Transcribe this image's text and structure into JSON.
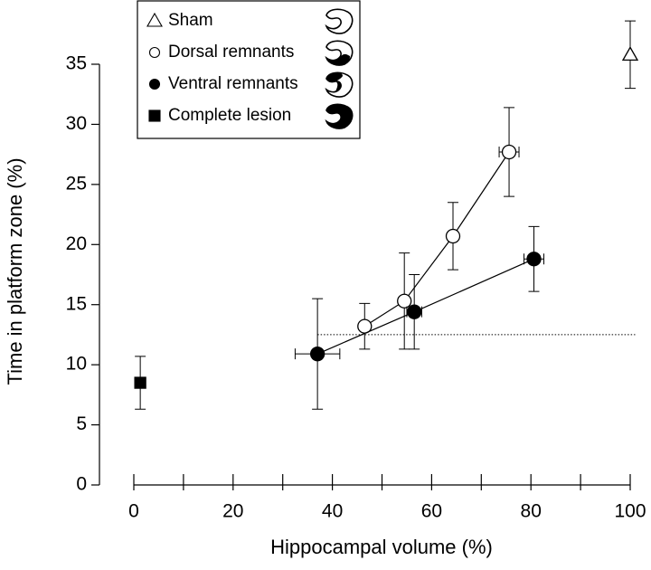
{
  "chart_data": {
    "type": "scatter",
    "xlabel": "Hippocampal volume (%)",
    "ylabel": "Time in platform zone (%)",
    "xlim": [
      0,
      100
    ],
    "ylim": [
      0,
      35
    ],
    "xticks": [
      0,
      20,
      40,
      60,
      80,
      100
    ],
    "xminor_ticks": [
      10,
      30,
      50,
      70,
      90
    ],
    "yticks": [
      0,
      5,
      10,
      15,
      20,
      25,
      30,
      35
    ],
    "reference_line": {
      "y": 12.5,
      "x": [
        37,
        101
      ]
    },
    "series": [
      {
        "name": "Sham",
        "marker": "triangle",
        "color": "#ffffff",
        "connect": false,
        "x": [
          100
        ],
        "y": [
          35.8
        ],
        "xerr": [
          0
        ],
        "yerr": [
          2.8
        ]
      },
      {
        "name": "Dorsal remnants",
        "marker": "circle",
        "color": "#ffffff",
        "connect": true,
        "x": [
          46.5,
          54.5,
          64.3,
          75.6
        ],
        "y": [
          13.2,
          15.3,
          20.7,
          27.7
        ],
        "xerr": [
          0,
          0,
          0,
          2
        ],
        "yerr": [
          1.9,
          4,
          2.8,
          3.7
        ]
      },
      {
        "name": "Ventral remnants",
        "marker": "circle",
        "color": "#000000",
        "connect": true,
        "x": [
          37,
          56.5,
          80.6
        ],
        "y": [
          10.9,
          14.4,
          18.8
        ],
        "xerr": [
          4.5,
          1.5,
          2
        ],
        "yerr": [
          4.6,
          3.1,
          2.7
        ]
      },
      {
        "name": "Complete lesion",
        "marker": "square",
        "color": "#000000",
        "connect": false,
        "x": [
          1.3
        ],
        "y": [
          8.5
        ],
        "xerr": [
          0.8
        ],
        "yerr": [
          2.2
        ]
      }
    ]
  }
}
